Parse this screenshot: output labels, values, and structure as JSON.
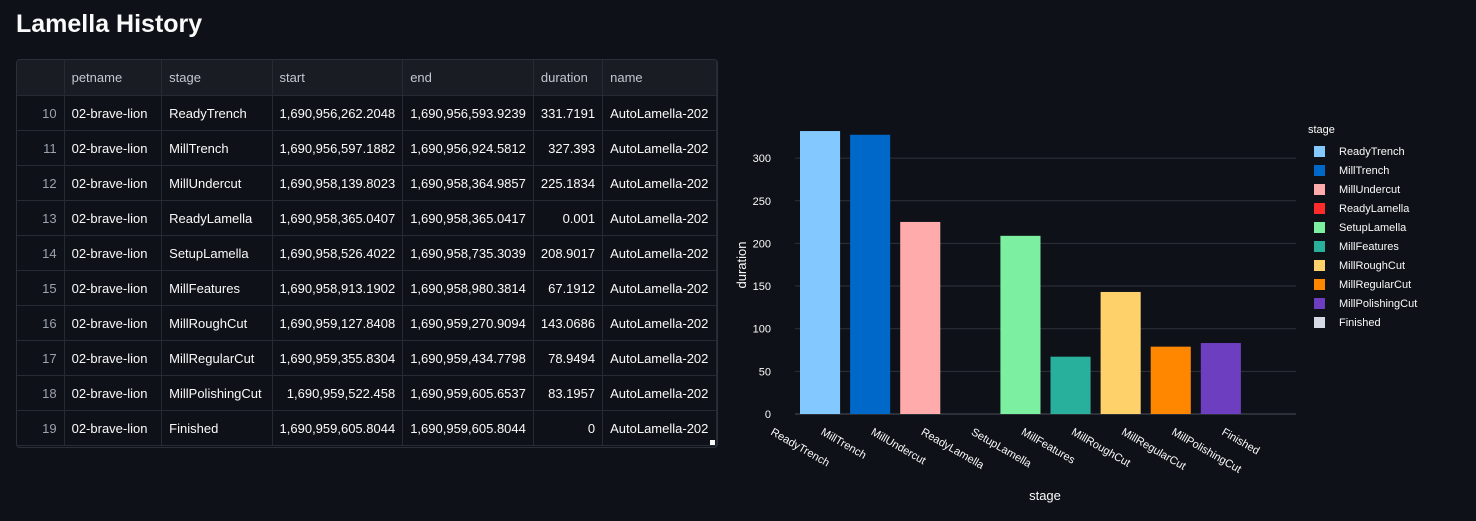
{
  "page": {
    "title": "Lamella History"
  },
  "table": {
    "columns": [
      "",
      "petname",
      "stage",
      "start",
      "end",
      "duration",
      "name"
    ],
    "rows": [
      [
        "10",
        "02-brave-lion",
        "ReadyTrench",
        "1,690,956,262.2048",
        "1,690,956,593.9239",
        "331.7191",
        "AutoLamella-202"
      ],
      [
        "11",
        "02-brave-lion",
        "MillTrench",
        "1,690,956,597.1882",
        "1,690,956,924.5812",
        "327.393",
        "AutoLamella-202"
      ],
      [
        "12",
        "02-brave-lion",
        "MillUndercut",
        "1,690,958,139.8023",
        "1,690,958,364.9857",
        "225.1834",
        "AutoLamella-202"
      ],
      [
        "13",
        "02-brave-lion",
        "ReadyLamella",
        "1,690,958,365.0407",
        "1,690,958,365.0417",
        "0.001",
        "AutoLamella-202"
      ],
      [
        "14",
        "02-brave-lion",
        "SetupLamella",
        "1,690,958,526.4022",
        "1,690,958,735.3039",
        "208.9017",
        "AutoLamella-202"
      ],
      [
        "15",
        "02-brave-lion",
        "MillFeatures",
        "1,690,958,913.1902",
        "1,690,958,980.3814",
        "67.1912",
        "AutoLamella-202"
      ],
      [
        "16",
        "02-brave-lion",
        "MillRoughCut",
        "1,690,959,127.8408",
        "1,690,959,270.9094",
        "143.0686",
        "AutoLamella-202"
      ],
      [
        "17",
        "02-brave-lion",
        "MillRegularCut",
        "1,690,959,355.8304",
        "1,690,959,434.7798",
        "78.9494",
        "AutoLamella-202"
      ],
      [
        "18",
        "02-brave-lion",
        "MillPolishingCut",
        "1,690,959,522.458",
        "1,690,959,605.6537",
        "83.1957",
        "AutoLamella-202"
      ],
      [
        "19",
        "02-brave-lion",
        "Finished",
        "1,690,959,605.8044",
        "1,690,959,605.8044",
        "0",
        "AutoLamella-202"
      ]
    ]
  },
  "chart_data": {
    "type": "bar",
    "title": "",
    "xlabel": "stage",
    "ylabel": "duration",
    "ylim": [
      0,
      340
    ],
    "yticks": [
      0,
      50,
      100,
      150,
      200,
      250,
      300
    ],
    "grid": true,
    "legend_title": "stage",
    "legend_placement": "right",
    "categories": [
      "ReadyTrench",
      "MillTrench",
      "MillUndercut",
      "ReadyLamella",
      "SetupLamella",
      "MillFeatures",
      "MillRoughCut",
      "MillRegularCut",
      "MillPolishingCut",
      "Finished"
    ],
    "values": [
      331.7191,
      327.393,
      225.1834,
      0.001,
      208.9017,
      67.1912,
      143.0686,
      78.9494,
      83.1957,
      0
    ],
    "colors": [
      "#83c9ff",
      "#0068c9",
      "#ffabab",
      "#ff2b2b",
      "#7defa1",
      "#29b09d",
      "#ffd16a",
      "#ff8700",
      "#6d3fc0",
      "#d5dae5"
    ]
  }
}
